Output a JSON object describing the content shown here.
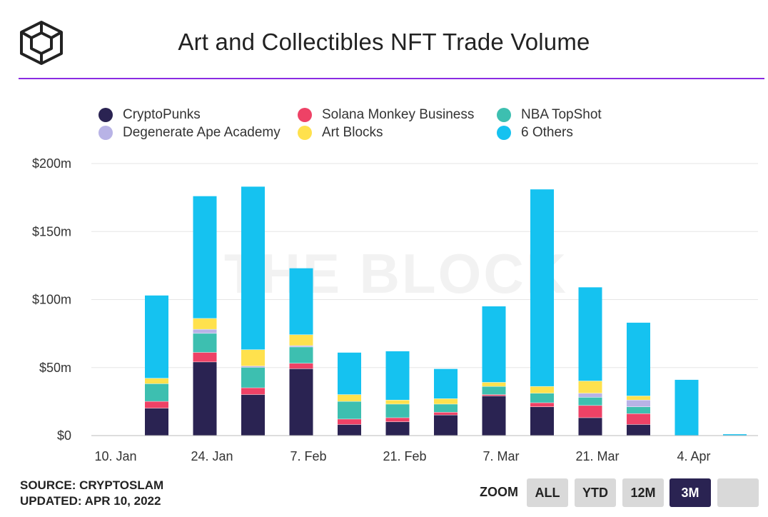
{
  "header": {
    "title": "Art and Collectibles NFT Trade Volume"
  },
  "watermark": "THE BLOCK",
  "chart_data": {
    "type": "bar",
    "stacked": true,
    "title": "Art and Collectibles NFT Trade Volume",
    "xlabel": "",
    "ylabel": "",
    "ylim": [
      0,
      200
    ],
    "y_unit": "$m",
    "yticks": [
      "$0",
      "$50m",
      "$100m",
      "$150m",
      "$200m"
    ],
    "ytick_values": [
      0,
      50,
      100,
      150,
      200
    ],
    "xticks": [
      "10. Jan",
      "24. Jan",
      "7. Feb",
      "21. Feb",
      "7. Mar",
      "21. Mar",
      "4. Apr"
    ],
    "categories": [
      "10. Jan",
      "17. Jan",
      "24. Jan",
      "31. Jan",
      "7. Feb",
      "14. Feb",
      "21. Feb",
      "28. Feb",
      "7. Mar",
      "14. Mar",
      "21. Mar",
      "28. Mar",
      "4. Apr",
      "11. Apr"
    ],
    "grid": true,
    "legend_position": "top",
    "series": [
      {
        "name": "CryptoPunks",
        "color": "#2a2352",
        "values": [
          0,
          20,
          54,
          30,
          49,
          8,
          10,
          15,
          29,
          21,
          13,
          8,
          0,
          0
        ]
      },
      {
        "name": "Solana Monkey Business",
        "color": "#ee4266",
        "values": [
          0,
          5,
          7,
          5,
          4,
          4,
          3,
          2,
          1,
          3,
          9,
          8,
          0,
          0
        ]
      },
      {
        "name": "NBA TopShot",
        "color": "#3dbfb0",
        "values": [
          0,
          13,
          14,
          15,
          12,
          13,
          10,
          6,
          6,
          7,
          6,
          5,
          0,
          0
        ]
      },
      {
        "name": "Degenerate Ape Academy",
        "color": "#b8b3e6",
        "values": [
          0,
          0,
          3,
          1,
          1,
          0,
          0,
          0,
          0,
          0,
          3,
          5,
          0,
          0
        ]
      },
      {
        "name": "Art Blocks",
        "color": "#ffe14d",
        "values": [
          0,
          4,
          8,
          12,
          8,
          5,
          3,
          4,
          3,
          5,
          9,
          3,
          0,
          0
        ]
      },
      {
        "name": "6 Others",
        "color": "#15c2f0",
        "values": [
          0,
          61,
          90,
          120,
          49,
          31,
          36,
          22,
          56,
          145,
          69,
          54,
          41,
          1
        ]
      }
    ]
  },
  "footer": {
    "source": "SOURCE: CRYPTOSLAM",
    "updated": "UPDATED: APR 10, 2022"
  },
  "zoom": {
    "label": "ZOOM",
    "buttons": [
      {
        "label": "ALL",
        "active": false
      },
      {
        "label": "YTD",
        "active": false
      },
      {
        "label": "12M",
        "active": false
      },
      {
        "label": "3M",
        "active": true
      },
      {
        "label": "",
        "active": false
      }
    ]
  }
}
